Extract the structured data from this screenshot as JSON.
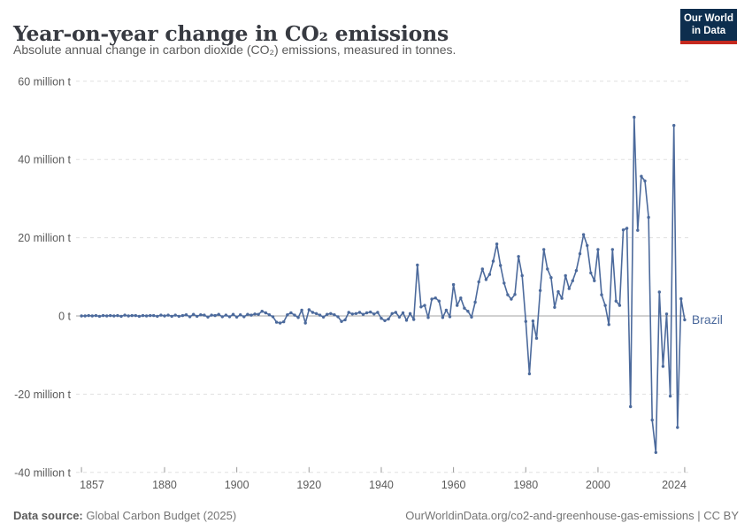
{
  "header": {
    "title": "Year-on-year change in CO₂ emissions",
    "subtitle": "Absolute annual change in carbon dioxide (CO₂) emissions, measured in tonnes."
  },
  "logo": {
    "line1": "Our World",
    "line2": "in Data",
    "bg_color": "#0d2e4e",
    "accent_color": "#c5291f"
  },
  "footer": {
    "source_label": "Data source:",
    "source_text": " Global Carbon Budget (2025)",
    "credit": "OurWorldinData.org/co2-and-greenhouse-gas-emissions | CC BY"
  },
  "chart_data": {
    "type": "line",
    "entity": "Brazil",
    "unit": "million tonnes",
    "line_color": "#4c6a9c",
    "grid_color": "#e0e0e0",
    "zero_line_color": "#a3a3a3",
    "axis_text_color": "#5b5b5b",
    "tick_color": "#999999",
    "x_domain": [
      1856,
      2025
    ],
    "y_domain_millions": [
      -40,
      60
    ],
    "grid": true,
    "legend_position": "end-of-line",
    "y_ticks": [
      {
        "value": 60,
        "label": "60 million t"
      },
      {
        "value": 40,
        "label": "40 million t"
      },
      {
        "value": 20,
        "label": "20 million t"
      },
      {
        "value": 0,
        "label": "0 t"
      },
      {
        "value": -20,
        "label": "-20 million t"
      },
      {
        "value": -40,
        "label": "-40 million t"
      }
    ],
    "x_ticks": [
      {
        "year": 1857,
        "label": "1857"
      },
      {
        "year": 1880,
        "label": "1880"
      },
      {
        "year": 1900,
        "label": "1900"
      },
      {
        "year": 1920,
        "label": "1920"
      },
      {
        "year": 1940,
        "label": "1940"
      },
      {
        "year": 1960,
        "label": "1960"
      },
      {
        "year": 1980,
        "label": "1980"
      },
      {
        "year": 2000,
        "label": "2000"
      },
      {
        "year": 2024,
        "label": "2024"
      }
    ],
    "start_year": 1857,
    "end_year": 2024,
    "values_million_t": [
      0.0,
      0.0,
      0.1,
      0.0,
      0.1,
      -0.1,
      0.1,
      0.0,
      0.1,
      0.0,
      0.1,
      -0.1,
      0.2,
      0.0,
      0.1,
      0.1,
      -0.1,
      0.1,
      0.0,
      0.1,
      0.1,
      -0.1,
      0.2,
      0.0,
      0.2,
      -0.1,
      0.2,
      -0.1,
      0.1,
      0.3,
      -0.2,
      0.4,
      -0.1,
      0.3,
      0.2,
      -0.3,
      0.2,
      0.1,
      0.4,
      -0.2,
      0.2,
      -0.2,
      0.4,
      -0.3,
      0.3,
      -0.2,
      0.4,
      0.2,
      0.5,
      0.4,
      1.2,
      0.8,
      0.3,
      -0.2,
      -1.6,
      -1.8,
      -1.5,
      0.3,
      0.8,
      0.2,
      -0.4,
      1.5,
      -1.8,
      1.6,
      0.9,
      0.6,
      0.2,
      -0.3,
      0.4,
      0.6,
      0.3,
      -0.2,
      -1.4,
      -1.0,
      0.9,
      0.5,
      0.6,
      0.9,
      0.4,
      0.8,
      1.0,
      0.5,
      0.9,
      -0.6,
      -1.2,
      -0.8,
      0.6,
      0.9,
      -0.3,
      0.8,
      -1.1,
      0.6,
      -0.9,
      13.0,
      2.3,
      2.7,
      -0.4,
      4.3,
      4.6,
      3.8,
      -0.4,
      1.5,
      -0.2,
      8.0,
      2.7,
      4.6,
      2.0,
      1.2,
      -0.3,
      3.5,
      8.7,
      12.0,
      9.3,
      10.6,
      14.0,
      18.4,
      12.9,
      8.4,
      5.4,
      4.3,
      5.5,
      15.2,
      10.3,
      -1.4,
      -14.8,
      -1.3,
      -5.7,
      6.5,
      17.0,
      12.0,
      9.8,
      2.2,
      6.2,
      4.5,
      10.3,
      7.0,
      9.0,
      11.6,
      15.9,
      20.8,
      18.0,
      11.0,
      9.0,
      17.0,
      5.4,
      2.7,
      -2.2,
      17.0,
      3.8,
      2.7,
      22.0,
      22.4,
      -23.2,
      50.8,
      21.9,
      35.7,
      34.5,
      25.2,
      -26.6,
      -34.9,
      6.1,
      -12.9,
      0.5,
      -20.5,
      48.7,
      -28.5,
      4.4,
      -1.0
    ]
  }
}
